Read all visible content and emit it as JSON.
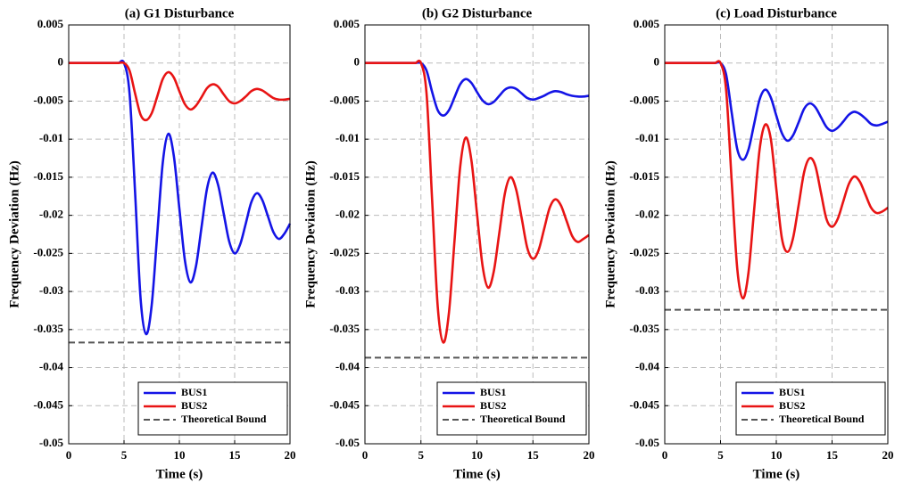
{
  "chart_data": [
    {
      "type": "line",
      "title": "(a) G1 Disturbance",
      "xlabel": "Time (s)",
      "ylabel": "Frequency Deviation (Hz)",
      "x": [
        0,
        0.5,
        1,
        1.5,
        2,
        2.5,
        3,
        3.5,
        4,
        4.5,
        5,
        5.5,
        6,
        6.5,
        7,
        7.5,
        8,
        8.5,
        9,
        9.5,
        10,
        10.5,
        11,
        11.5,
        12,
        12.5,
        13,
        13.5,
        14,
        14.5,
        15,
        15.5,
        16,
        16.5,
        17,
        17.5,
        18,
        18.5,
        19,
        19.5,
        20
      ],
      "series": [
        {
          "name": "BUS1",
          "color": "#1414e6",
          "values": [
            0,
            0,
            0,
            0,
            0,
            0,
            0,
            0,
            0,
            0,
            0,
            -0.004,
            -0.017,
            -0.031,
            -0.0356,
            -0.0318,
            -0.0225,
            -0.0131,
            -0.0093,
            -0.0122,
            -0.0191,
            -0.0259,
            -0.0288,
            -0.0267,
            -0.0216,
            -0.0165,
            -0.0144,
            -0.016,
            -0.0197,
            -0.0234,
            -0.025,
            -0.0238,
            -0.0211,
            -0.0183,
            -0.0171,
            -0.018,
            -0.0201,
            -0.0222,
            -0.0231,
            -0.0224,
            -0.0211
          ]
        },
        {
          "name": "BUS2",
          "color": "#e81414",
          "values": [
            0,
            0,
            0,
            0,
            0,
            0,
            0,
            0,
            0,
            0,
            0,
            -0.001,
            -0.004,
            -0.0068,
            -0.0075,
            -0.0066,
            -0.0044,
            -0.0021,
            -0.0012,
            -0.0019,
            -0.0037,
            -0.0054,
            -0.0061,
            -0.0056,
            -0.0045,
            -0.0033,
            -0.0028,
            -0.0031,
            -0.0041,
            -0.005,
            -0.0053,
            -0.005,
            -0.0044,
            -0.0037,
            -0.0034,
            -0.0036,
            -0.0041,
            -0.0046,
            -0.0048,
            -0.0048,
            -0.0047
          ]
        }
      ],
      "reference_lines": [
        {
          "name": "Theoretical Bound",
          "value": -0.0367,
          "color": "#555555",
          "dash": true
        }
      ],
      "xlim": [
        0,
        20
      ],
      "xticks": [
        0,
        5,
        10,
        15,
        20
      ],
      "ylim": [
        -0.05,
        0.005
      ],
      "yticks": [
        0.005,
        0,
        -0.005,
        -0.01,
        -0.015,
        -0.02,
        -0.025,
        -0.03,
        -0.035,
        -0.04,
        -0.045,
        -0.05
      ],
      "grid": true,
      "legend": "lower right"
    },
    {
      "type": "line",
      "title": "(b) G2 Disturbance",
      "xlabel": "Time (s)",
      "ylabel": "Frequency Deviation (Hz)",
      "x": [
        0,
        0.5,
        1,
        1.5,
        2,
        2.5,
        3,
        3.5,
        4,
        4.5,
        5,
        5.5,
        6,
        6.5,
        7,
        7.5,
        8,
        8.5,
        9,
        9.5,
        10,
        10.5,
        11,
        11.5,
        12,
        12.5,
        13,
        13.5,
        14,
        14.5,
        15,
        15.5,
        16,
        16.5,
        17,
        17.5,
        18,
        18.5,
        19,
        19.5,
        20
      ],
      "series": [
        {
          "name": "BUS1",
          "color": "#1414e6",
          "values": [
            0,
            0,
            0,
            0,
            0,
            0,
            0,
            0,
            0,
            0,
            0,
            -0.001,
            -0.0038,
            -0.0062,
            -0.0069,
            -0.0062,
            -0.0045,
            -0.0028,
            -0.0021,
            -0.0026,
            -0.0038,
            -0.0049,
            -0.0054,
            -0.0051,
            -0.0043,
            -0.0035,
            -0.0032,
            -0.0034,
            -0.004,
            -0.0046,
            -0.0048,
            -0.0046,
            -0.0043,
            -0.0039,
            -0.0037,
            -0.0038,
            -0.0041,
            -0.0043,
            -0.0044,
            -0.0044,
            -0.0043
          ]
        },
        {
          "name": "BUS2",
          "color": "#e81414",
          "values": [
            0,
            0,
            0,
            0,
            0,
            0,
            0,
            0,
            0,
            0,
            0,
            -0.004,
            -0.018,
            -0.032,
            -0.0367,
            -0.0328,
            -0.0233,
            -0.0137,
            -0.0098,
            -0.0127,
            -0.0197,
            -0.0266,
            -0.0295,
            -0.0274,
            -0.0223,
            -0.0171,
            -0.015,
            -0.0166,
            -0.0204,
            -0.0243,
            -0.0257,
            -0.0246,
            -0.0218,
            -0.019,
            -0.0179,
            -0.0187,
            -0.0207,
            -0.0227,
            -0.0235,
            -0.0231,
            -0.0226
          ]
        }
      ],
      "reference_lines": [
        {
          "name": "Theoretical Bound",
          "value": -0.0387,
          "color": "#555555",
          "dash": true
        }
      ],
      "xlim": [
        0,
        20
      ],
      "xticks": [
        0,
        5,
        10,
        15,
        20
      ],
      "ylim": [
        -0.05,
        0.005
      ],
      "yticks": [
        0.005,
        0,
        -0.005,
        -0.01,
        -0.015,
        -0.02,
        -0.025,
        -0.03,
        -0.035,
        -0.04,
        -0.045,
        -0.05
      ],
      "grid": true,
      "legend": "lower right"
    },
    {
      "type": "line",
      "title": "(c) Load Disturbance",
      "xlabel": "Time (s)",
      "ylabel": "Frequency Deviation (Hz)",
      "x": [
        0,
        0.5,
        1,
        1.5,
        2,
        2.5,
        3,
        3.5,
        4,
        4.5,
        5,
        5.5,
        6,
        6.5,
        7,
        7.5,
        8,
        8.5,
        9,
        9.5,
        10,
        10.5,
        11,
        11.5,
        12,
        12.5,
        13,
        13.5,
        14,
        14.5,
        15,
        15.5,
        16,
        16.5,
        17,
        17.5,
        18,
        18.5,
        19,
        19.5,
        20
      ],
      "series": [
        {
          "name": "BUS1",
          "color": "#1414e6",
          "values": [
            0,
            0,
            0,
            0,
            0,
            0,
            0,
            0,
            0,
            0,
            0,
            -0.0015,
            -0.0065,
            -0.0113,
            -0.0127,
            -0.0114,
            -0.0081,
            -0.0048,
            -0.0035,
            -0.0045,
            -0.0069,
            -0.0092,
            -0.0102,
            -0.0095,
            -0.0078,
            -0.006,
            -0.0053,
            -0.0058,
            -0.0071,
            -0.0084,
            -0.0089,
            -0.0085,
            -0.0077,
            -0.0068,
            -0.0064,
            -0.0067,
            -0.0073,
            -0.008,
            -0.0082,
            -0.008,
            -0.0077
          ]
        },
        {
          "name": "BUS2",
          "color": "#e81414",
          "values": [
            0,
            0,
            0,
            0,
            0,
            0,
            0,
            0,
            0,
            0,
            0,
            -0.0035,
            -0.0155,
            -0.027,
            -0.0309,
            -0.0276,
            -0.0195,
            -0.0114,
            -0.0081,
            -0.0099,
            -0.0165,
            -0.023,
            -0.0248,
            -0.023,
            -0.0187,
            -0.0143,
            -0.0125,
            -0.0135,
            -0.017,
            -0.0205,
            -0.0215,
            -0.0205,
            -0.0182,
            -0.0159,
            -0.0149,
            -0.0156,
            -0.0173,
            -0.019,
            -0.0197,
            -0.0195,
            -0.019
          ]
        }
      ],
      "reference_lines": [
        {
          "name": "Theoretical Bound",
          "value": -0.0324,
          "color": "#555555",
          "dash": true
        }
      ],
      "xlim": [
        0,
        20
      ],
      "xticks": [
        0,
        5,
        10,
        15,
        20
      ],
      "ylim": [
        -0.05,
        0.005
      ],
      "yticks": [
        0.005,
        0,
        -0.005,
        -0.01,
        -0.015,
        -0.02,
        -0.025,
        -0.03,
        -0.035,
        -0.04,
        -0.045,
        -0.05
      ],
      "grid": true,
      "legend": "lower right"
    }
  ]
}
